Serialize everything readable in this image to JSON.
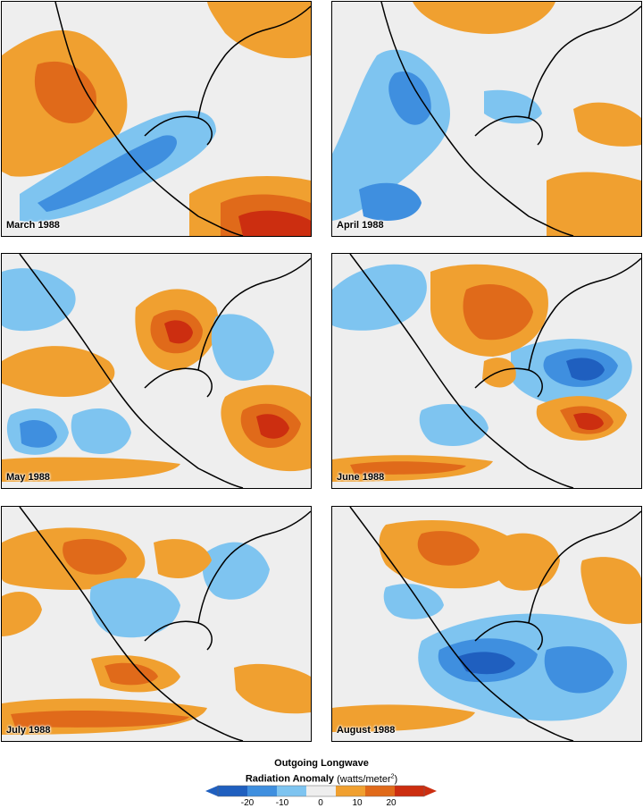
{
  "panels": [
    {
      "label": "March 1988"
    },
    {
      "label": "April 1988"
    },
    {
      "label": "May 1988"
    },
    {
      "label": "June 1988"
    },
    {
      "label": "July 1988"
    },
    {
      "label": "August 1988"
    }
  ],
  "legend": {
    "title_line1": "Outgoing Longwave",
    "title_line2": "Radiation Anomaly",
    "unit_prefix": "(watts/meter",
    "unit_exp": "2",
    "unit_suffix": ")",
    "ticks": [
      "-20",
      "-10",
      "0",
      "10",
      "20"
    ],
    "colors": [
      "#1f5fbf",
      "#3f8fdf",
      "#7ec4f0",
      "#eeeeee",
      "#f0a030",
      "#e06a1a",
      "#cc2e10"
    ]
  }
}
